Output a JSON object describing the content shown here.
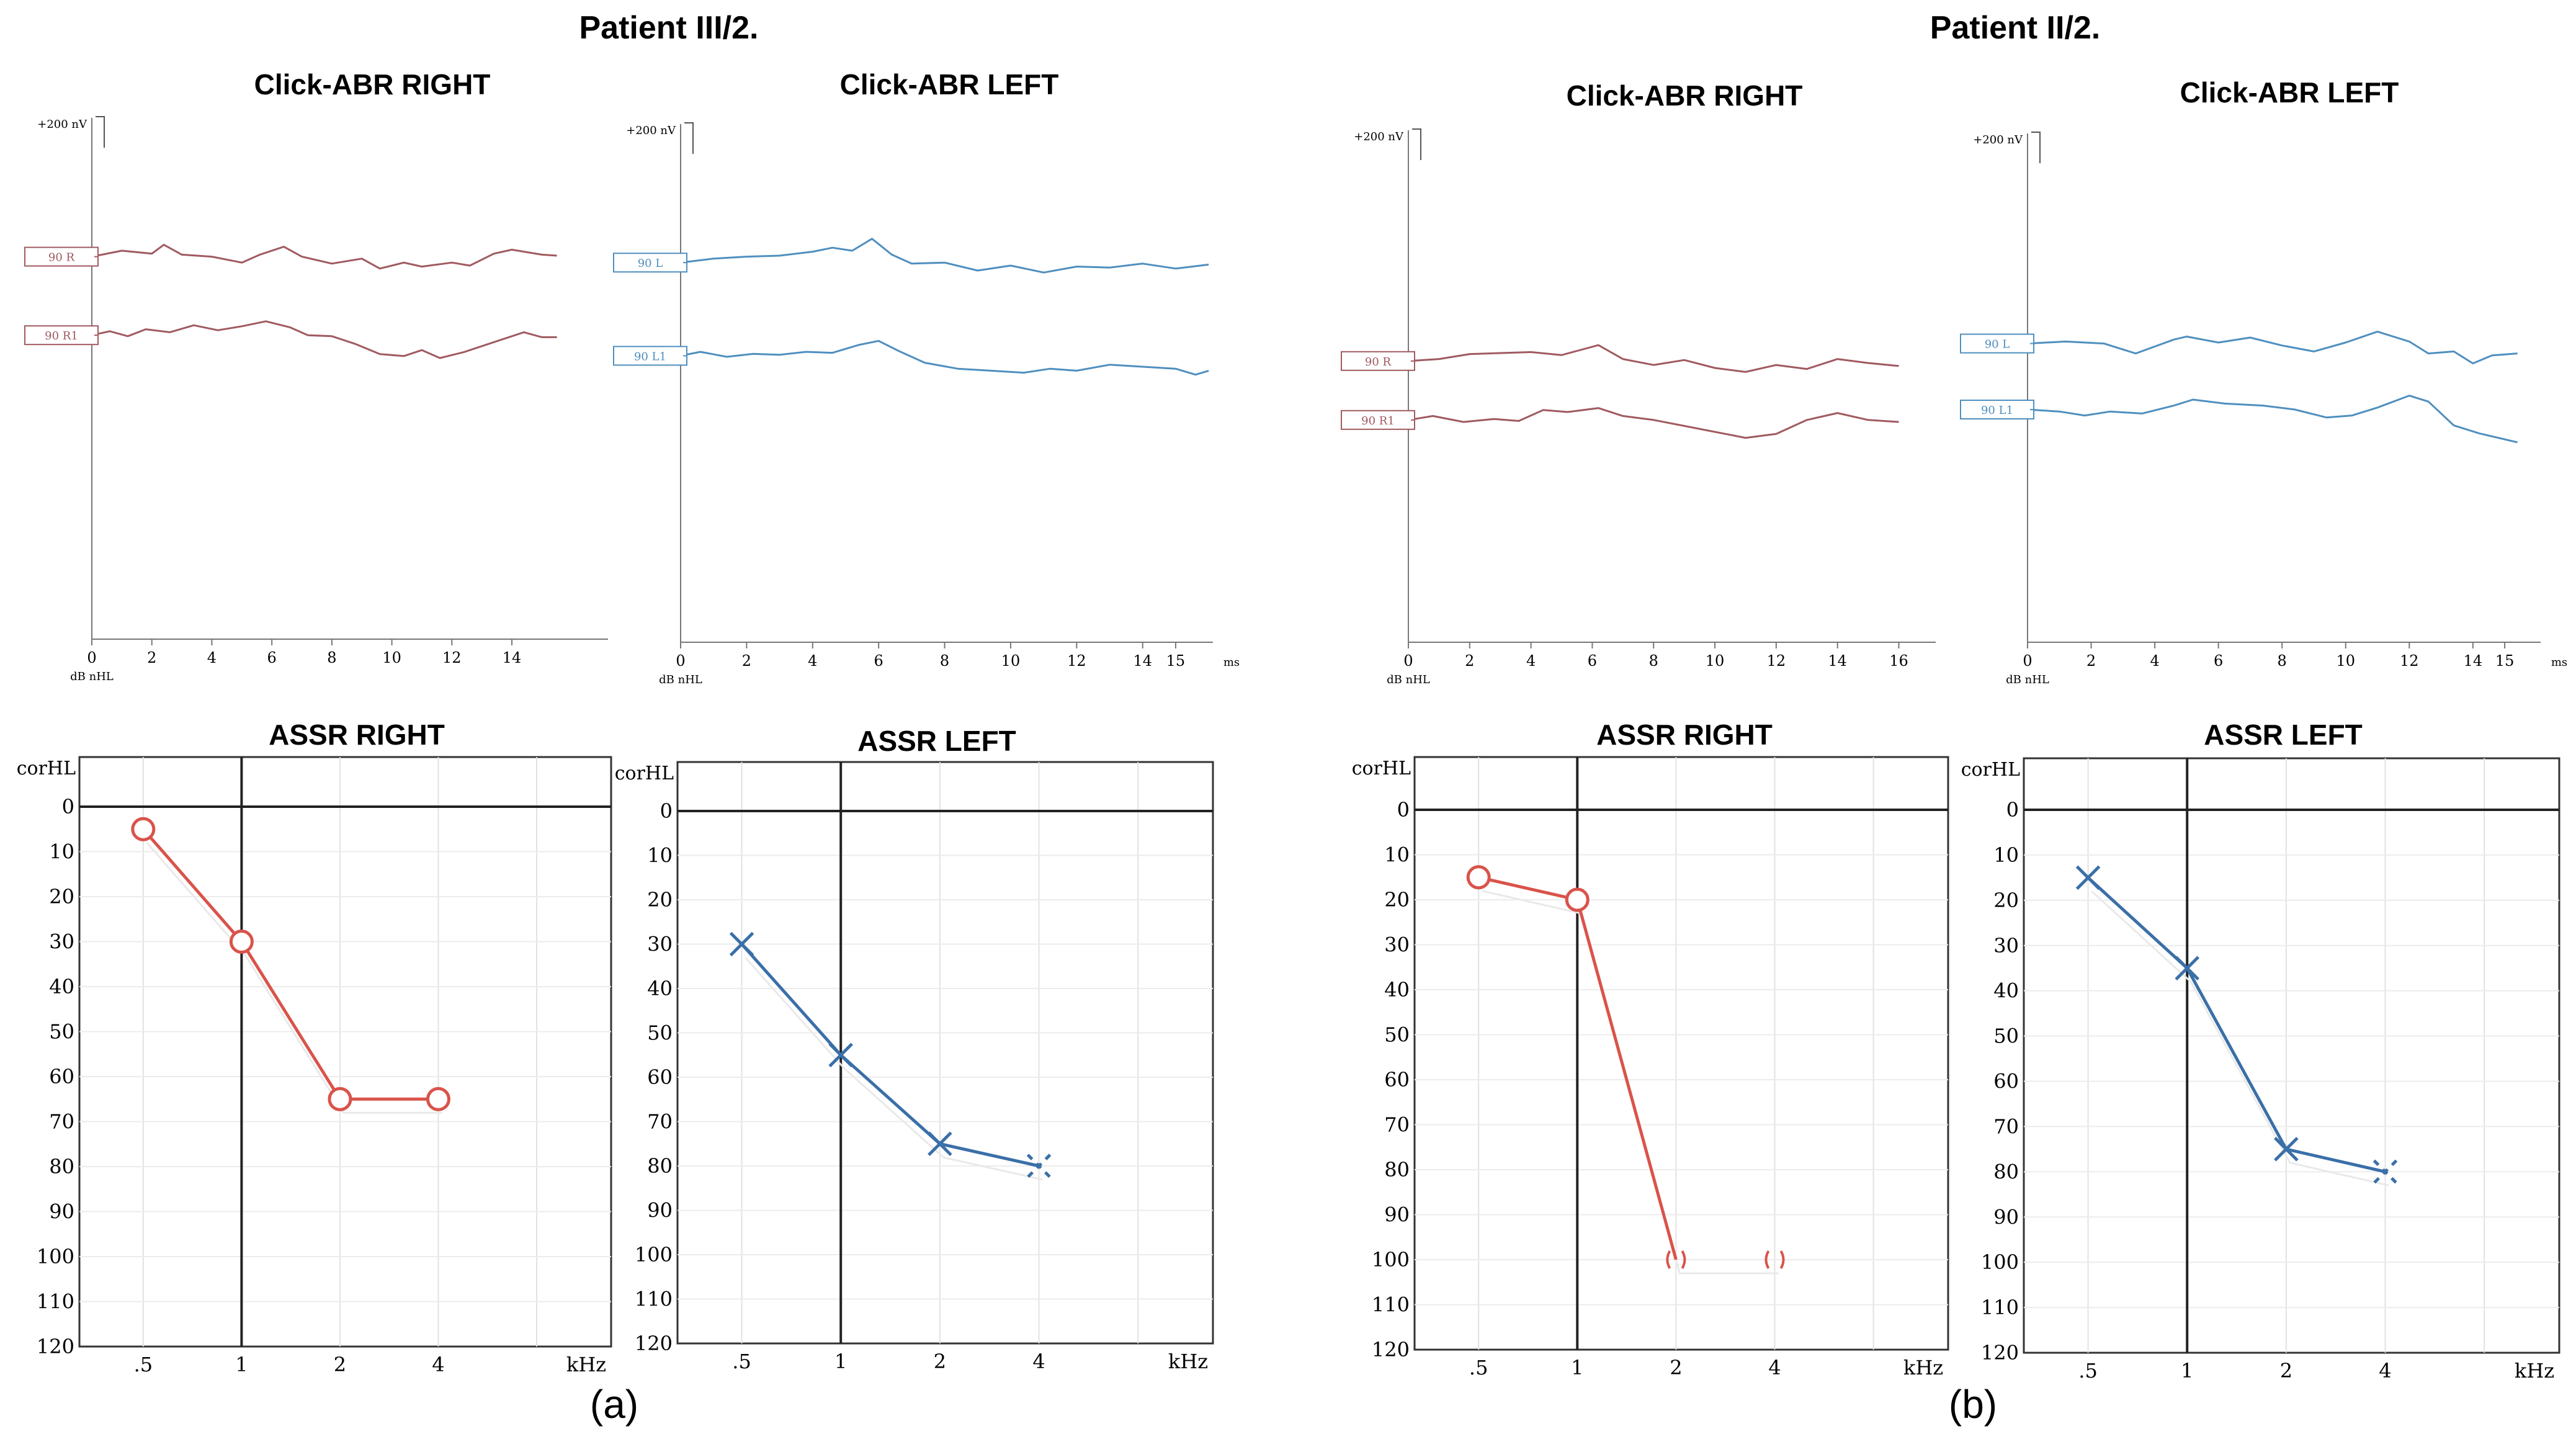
{
  "figure": {
    "panel_a": "(a)",
    "panel_b": "(b)"
  },
  "patients": [
    {
      "title": "Patient III/2.",
      "abr": [
        {
          "title": "Click-ABR RIGHT",
          "scale_label": "+200 nV",
          "db_label": "dB nHL",
          "tick_labels": [
            "0",
            "2",
            "4",
            "6",
            "8",
            "10",
            "12",
            "14"
          ],
          "unit_label": "",
          "color": "#a05a60",
          "traces": [
            {
              "label": "90 R",
              "points": [
                [
                  0,
                  0.4
                ],
                [
                  1,
                  1.0
                ],
                [
                  2,
                  0.7
                ],
                [
                  2.4,
                  1.6
                ],
                [
                  3,
                  0.6
                ],
                [
                  4,
                  0.4
                ],
                [
                  5,
                  -0.2
                ],
                [
                  5.6,
                  0.6
                ],
                [
                  6.4,
                  1.4
                ],
                [
                  7,
                  0.4
                ],
                [
                  8,
                  -0.3
                ],
                [
                  9,
                  0.2
                ],
                [
                  9.6,
                  -0.8
                ],
                [
                  10.4,
                  -0.2
                ],
                [
                  11,
                  -0.6
                ],
                [
                  12,
                  -0.2
                ],
                [
                  12.6,
                  -0.5
                ],
                [
                  13.4,
                  0.7
                ],
                [
                  14,
                  1.1
                ],
                [
                  15,
                  0.6
                ],
                [
                  15.5,
                  0.5
                ]
              ]
            },
            {
              "label": "90 R1",
              "points": [
                [
                  0,
                  0.3
                ],
                [
                  0.6,
                  0.7
                ],
                [
                  1.2,
                  0.2
                ],
                [
                  1.8,
                  0.9
                ],
                [
                  2.6,
                  0.6
                ],
                [
                  3.4,
                  1.3
                ],
                [
                  4.2,
                  0.8
                ],
                [
                  5,
                  1.2
                ],
                [
                  5.8,
                  1.7
                ],
                [
                  6.6,
                  1.1
                ],
                [
                  7.2,
                  0.3
                ],
                [
                  8,
                  0.2
                ],
                [
                  8.8,
                  -0.6
                ],
                [
                  9.6,
                  -1.6
                ],
                [
                  10.4,
                  -1.8
                ],
                [
                  11,
                  -1.2
                ],
                [
                  11.6,
                  -2.0
                ],
                [
                  12.4,
                  -1.4
                ],
                [
                  13,
                  -0.8
                ],
                [
                  13.6,
                  -0.2
                ],
                [
                  14.4,
                  0.6
                ],
                [
                  15,
                  0.1
                ],
                [
                  15.5,
                  0.1
                ]
              ]
            }
          ]
        },
        {
          "title": "Click-ABR LEFT",
          "scale_label": "+200 nV",
          "db_label": "dB nHL",
          "tick_labels": [
            "0",
            "2",
            "4",
            "6",
            "8",
            "10",
            "12",
            "14",
            "15"
          ],
          "unit_label": "ms",
          "color": "#4f8fbf",
          "traces": [
            {
              "label": "90 L",
              "points": [
                [
                  0,
                  -0.2
                ],
                [
                  1,
                  0.2
                ],
                [
                  2,
                  0.4
                ],
                [
                  3,
                  0.5
                ],
                [
                  4,
                  0.9
                ],
                [
                  4.6,
                  1.3
                ],
                [
                  5.2,
                  1.0
                ],
                [
                  5.8,
                  2.2
                ],
                [
                  6.4,
                  0.6
                ],
                [
                  7,
                  -0.3
                ],
                [
                  8,
                  -0.2
                ],
                [
                  9,
                  -1.0
                ],
                [
                  10,
                  -0.5
                ],
                [
                  11,
                  -1.2
                ],
                [
                  12,
                  -0.6
                ],
                [
                  13,
                  -0.7
                ],
                [
                  14,
                  -0.3
                ],
                [
                  15,
                  -0.8
                ],
                [
                  16,
                  -0.4
                ]
              ]
            },
            {
              "label": "90 L1",
              "points": [
                [
                  0,
                  0.1
                ],
                [
                  0.6,
                  0.5
                ],
                [
                  1.4,
                  0.0
                ],
                [
                  2.2,
                  0.3
                ],
                [
                  3,
                  0.2
                ],
                [
                  3.8,
                  0.5
                ],
                [
                  4.6,
                  0.4
                ],
                [
                  5.4,
                  1.2
                ],
                [
                  6,
                  1.6
                ],
                [
                  6.6,
                  0.6
                ],
                [
                  7.4,
                  -0.6
                ],
                [
                  8.4,
                  -1.2
                ],
                [
                  9.4,
                  -1.4
                ],
                [
                  10.4,
                  -1.6
                ],
                [
                  11.2,
                  -1.2
                ],
                [
                  12,
                  -1.4
                ],
                [
                  13,
                  -0.8
                ],
                [
                  14,
                  -1.0
                ],
                [
                  15,
                  -1.2
                ],
                [
                  15.6,
                  -1.8
                ],
                [
                  16,
                  -1.4
                ]
              ]
            }
          ]
        }
      ],
      "assr": [
        {
          "title": "ASSR RIGHT",
          "ylabel": "corHL",
          "xlabel": "kHz",
          "color": "#d9534a",
          "marker": "circle",
          "x_tick_labels": [
            ".5",
            "1",
            "2",
            "4"
          ],
          "y_tick_labels": [
            "0",
            "10",
            "20",
            "30",
            "40",
            "50",
            "60",
            "70",
            "80",
            "90",
            "100",
            "110",
            "120"
          ],
          "points": [
            {
              "freq": ".5",
              "value": 5
            },
            {
              "freq": "1",
              "value": 30
            },
            {
              "freq": "2",
              "value": 65
            },
            {
              "freq": "4",
              "value": 65
            }
          ]
        },
        {
          "title": "ASSR LEFT",
          "ylabel": "corHL",
          "xlabel": "kHz",
          "color": "#3a6fa8",
          "marker": "cross",
          "x_tick_labels": [
            ".5",
            "1",
            "2",
            "4"
          ],
          "y_tick_labels": [
            "0",
            "10",
            "20",
            "30",
            "40",
            "50",
            "60",
            "70",
            "80",
            "90",
            "100",
            "110",
            "120"
          ],
          "points": [
            {
              "freq": ".5",
              "value": 30
            },
            {
              "freq": "1",
              "value": 55
            },
            {
              "freq": "2",
              "value": 75
            },
            {
              "freq": "4",
              "value": 80
            }
          ]
        }
      ]
    },
    {
      "title": "Patient II/2.",
      "abr": [
        {
          "title": "Click-ABR RIGHT",
          "scale_label": "+200 nV",
          "db_label": "dB nHL",
          "tick_labels": [
            "0",
            "2",
            "4",
            "6",
            "8",
            "10",
            "12",
            "14",
            "16"
          ],
          "unit_label": "",
          "color": "#a05a60",
          "traces": [
            {
              "label": "90 R",
              "points": [
                [
                  0,
                  0.2
                ],
                [
                  1,
                  0.4
                ],
                [
                  2,
                  0.9
                ],
                [
                  3,
                  1.0
                ],
                [
                  4,
                  1.1
                ],
                [
                  5,
                  0.8
                ],
                [
                  6.2,
                  1.8
                ],
                [
                  7,
                  0.4
                ],
                [
                  8,
                  -0.2
                ],
                [
                  9,
                  0.3
                ],
                [
                  10,
                  -0.5
                ],
                [
                  11,
                  -0.9
                ],
                [
                  12,
                  -0.2
                ],
                [
                  13,
                  -0.6
                ],
                [
                  14,
                  0.4
                ],
                [
                  15,
                  0.0
                ],
                [
                  16,
                  -0.3
                ]
              ]
            },
            {
              "label": "90 R1",
              "points": [
                [
                  0,
                  0.2
                ],
                [
                  0.8,
                  0.6
                ],
                [
                  1.8,
                  0.0
                ],
                [
                  2.8,
                  0.3
                ],
                [
                  3.6,
                  0.1
                ],
                [
                  4.4,
                  1.2
                ],
                [
                  5.2,
                  1.0
                ],
                [
                  6.2,
                  1.4
                ],
                [
                  7,
                  0.6
                ],
                [
                  8,
                  0.2
                ],
                [
                  9,
                  -0.4
                ],
                [
                  10,
                  -1.0
                ],
                [
                  11,
                  -1.6
                ],
                [
                  12,
                  -1.2
                ],
                [
                  13,
                  0.2
                ],
                [
                  14,
                  0.9
                ],
                [
                  15,
                  0.2
                ],
                [
                  16,
                  0.0
                ]
              ]
            }
          ]
        },
        {
          "title": "Click-ABR LEFT",
          "scale_label": "+200 nV",
          "db_label": "dB nHL",
          "tick_labels": [
            "0",
            "2",
            "4",
            "6",
            "8",
            "10",
            "12",
            "14",
            "15"
          ],
          "unit_label": "ms",
          "color": "#4f8fbf",
          "traces": [
            {
              "label": "90 L",
              "points": [
                [
                  0,
                  0.4
                ],
                [
                  1.2,
                  0.6
                ],
                [
                  2.4,
                  0.4
                ],
                [
                  3.4,
                  -0.6
                ],
                [
                  4.6,
                  0.8
                ],
                [
                  5,
                  1.1
                ],
                [
                  6,
                  0.5
                ],
                [
                  7,
                  1.0
                ],
                [
                  8,
                  0.2
                ],
                [
                  9,
                  -0.4
                ],
                [
                  10,
                  0.5
                ],
                [
                  11,
                  1.6
                ],
                [
                  12,
                  0.6
                ],
                [
                  12.6,
                  -0.6
                ],
                [
                  13.4,
                  -0.4
                ],
                [
                  14,
                  -1.6
                ],
                [
                  14.6,
                  -0.8
                ],
                [
                  15.4,
                  -0.6
                ]
              ]
            },
            {
              "label": "90 L1",
              "points": [
                [
                  0,
                  0.0
                ],
                [
                  1,
                  -0.2
                ],
                [
                  1.8,
                  -0.6
                ],
                [
                  2.6,
                  -0.2
                ],
                [
                  3.6,
                  -0.4
                ],
                [
                  4.6,
                  0.4
                ],
                [
                  5.2,
                  1.0
                ],
                [
                  6.2,
                  0.6
                ],
                [
                  7.4,
                  0.4
                ],
                [
                  8.4,
                  0.0
                ],
                [
                  9.4,
                  -0.8
                ],
                [
                  10.2,
                  -0.6
                ],
                [
                  11,
                  0.2
                ],
                [
                  12,
                  1.4
                ],
                [
                  12.6,
                  0.8
                ],
                [
                  13.4,
                  -1.6
                ],
                [
                  14.2,
                  -2.4
                ],
                [
                  15,
                  -3.0
                ],
                [
                  15.4,
                  -3.3
                ]
              ]
            }
          ]
        }
      ],
      "assr": [
        {
          "title": "ASSR RIGHT",
          "ylabel": "corHL",
          "xlabel": "kHz",
          "color": "#d9534a",
          "marker": "circle",
          "x_tick_labels": [
            ".5",
            "1",
            "2",
            "4"
          ],
          "y_tick_labels": [
            "0",
            "10",
            "20",
            "30",
            "40",
            "50",
            "60",
            "70",
            "80",
            "90",
            "100",
            "110",
            "120"
          ],
          "points": [
            {
              "freq": ".5",
              "value": 15
            },
            {
              "freq": "1",
              "value": 20
            },
            {
              "freq": "2",
              "value": 100,
              "no_response": true
            },
            {
              "freq": "4",
              "value": 100,
              "no_response": true
            }
          ]
        },
        {
          "title": "ASSR LEFT",
          "ylabel": "corHL",
          "xlabel": "kHz",
          "color": "#3a6fa8",
          "marker": "cross",
          "x_tick_labels": [
            ".5",
            "1",
            "2",
            "4"
          ],
          "y_tick_labels": [
            "0",
            "10",
            "20",
            "30",
            "40",
            "50",
            "60",
            "70",
            "80",
            "90",
            "100",
            "110",
            "120"
          ],
          "points": [
            {
              "freq": ".5",
              "value": 15
            },
            {
              "freq": "1",
              "value": 35
            },
            {
              "freq": "2",
              "value": 75
            },
            {
              "freq": "4",
              "value": 80
            }
          ]
        }
      ]
    }
  ]
}
